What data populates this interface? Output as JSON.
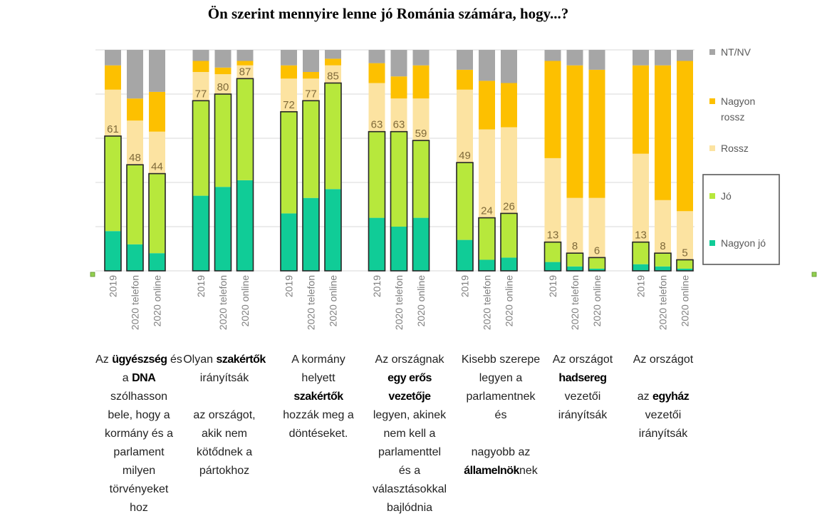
{
  "chart_data": {
    "type": "bar",
    "stacked": true,
    "title": "Ön szerint mennyire lenne jó Románia számára, hogy...?",
    "ylim": [
      0,
      100
    ],
    "grid": true,
    "legend_position": "right",
    "series": [
      {
        "name": "Nagyon jó",
        "color": "#10cc97"
      },
      {
        "name": "Jó",
        "color": "#b7e83c"
      },
      {
        "name": "Rossz",
        "color": "#fce3a1"
      },
      {
        "name": "Nagyon rossz",
        "color": "#fdc000"
      },
      {
        "name": "NT/NV",
        "color": "#a6a6a6"
      }
    ],
    "groups": [
      {
        "caption": [
          [
            {
              "t": "Az "
            },
            {
              "t": "ügyészség",
              "b": true
            },
            {
              "t": " és"
            }
          ],
          [
            {
              "t": "a "
            },
            {
              "t": "DNA",
              "b": true
            }
          ],
          [
            {
              "t": "szólhasson"
            }
          ],
          [
            {
              "t": "bele, hogy a"
            }
          ],
          [
            {
              "t": "kormány és a"
            }
          ],
          [
            {
              "t": "parlament"
            }
          ],
          [
            {
              "t": "milyen"
            }
          ],
          [
            {
              "t": "törvényeket"
            }
          ],
          [
            {
              "t": "hoz"
            }
          ]
        ],
        "bars": [
          {
            "category": "2019",
            "label": "61",
            "values": [
              18,
              43,
              21,
              11,
              7
            ]
          },
          {
            "category": "2020 telefon",
            "label": "48",
            "values": [
              12,
              36,
              20,
              10,
              22
            ]
          },
          {
            "category": "2020 online",
            "label": "44",
            "values": [
              8,
              36,
              19,
              18,
              19
            ]
          }
        ]
      },
      {
        "caption": [
          [
            {
              "t": "Olyan "
            },
            {
              "t": "szakértők",
              "b": true
            }
          ],
          [
            {
              "t": "irányítsák"
            }
          ],
          [
            {
              "t": ""
            }
          ],
          [
            {
              "t": "az országot,"
            }
          ],
          [
            {
              "t": "akik nem"
            }
          ],
          [
            {
              "t": "kötődnek a"
            }
          ],
          [
            {
              "t": "pártokhoz"
            }
          ]
        ],
        "bars": [
          {
            "category": "2019",
            "label": "77",
            "values": [
              34,
              43,
              13,
              5,
              5
            ]
          },
          {
            "category": "2020 telefon",
            "label": "80",
            "values": [
              38,
              42,
              9,
              3,
              8
            ]
          },
          {
            "category": "2020 online",
            "label": "87",
            "values": [
              41,
              46,
              6,
              2,
              5
            ]
          }
        ]
      },
      {
        "caption": [
          [
            {
              "t": "A kormány"
            }
          ],
          [
            {
              "t": "helyett"
            }
          ],
          [
            {
              "t": "szakértők",
              "b": true
            }
          ],
          [
            {
              "t": "hozzák meg a"
            }
          ],
          [
            {
              "t": "döntéseket."
            }
          ]
        ],
        "bars": [
          {
            "category": "2019",
            "label": "72",
            "values": [
              26,
              46,
              15,
              6,
              7
            ]
          },
          {
            "category": "2020 telefon",
            "label": "77",
            "values": [
              33,
              44,
              10,
              3,
              10
            ]
          },
          {
            "category": "2020 online",
            "label": "85",
            "values": [
              37,
              48,
              8,
              3,
              4
            ]
          }
        ]
      },
      {
        "caption": [
          [
            {
              "t": "Az országnak"
            }
          ],
          [
            {
              "t": "egy erős",
              "b": true
            }
          ],
          [
            {
              "t": "vezetője",
              "b": true
            }
          ],
          [
            {
              "t": "legyen, akinek"
            }
          ],
          [
            {
              "t": "nem kell a"
            }
          ],
          [
            {
              "t": "parlamenttel"
            }
          ],
          [
            {
              "t": "és a"
            }
          ],
          [
            {
              "t": "választásokkal"
            }
          ],
          [
            {
              "t": "bajlódnia"
            }
          ]
        ],
        "bars": [
          {
            "category": "2019",
            "label": "63",
            "values": [
              24,
              39,
              22,
              9,
              6
            ]
          },
          {
            "category": "2020 telefon",
            "label": "63",
            "values": [
              20,
              43,
              15,
              10,
              12
            ]
          },
          {
            "category": "2020 online",
            "label": "59",
            "values": [
              24,
              35,
              19,
              15,
              7
            ]
          }
        ]
      },
      {
        "caption": [
          [
            {
              "t": "Kisebb szerepe"
            }
          ],
          [
            {
              "t": "legyen a"
            }
          ],
          [
            {
              "t": "parlamentnek"
            }
          ],
          [
            {
              "t": "és"
            }
          ],
          [
            {
              "t": ""
            }
          ],
          [
            {
              "t": "nagyobb az"
            }
          ],
          [
            {
              "t": "államelnök",
              "b": true
            },
            {
              "t": "nek"
            }
          ]
        ],
        "bars": [
          {
            "category": "2019",
            "label": "49",
            "values": [
              14,
              35,
              33,
              9,
              9
            ]
          },
          {
            "category": "2020 telefon",
            "label": "24",
            "values": [
              5,
              19,
              40,
              22,
              14
            ]
          },
          {
            "category": "2020 online",
            "label": "26",
            "values": [
              6,
              20,
              39,
              20,
              15
            ]
          }
        ]
      },
      {
        "caption": [
          [
            {
              "t": "Az országot"
            }
          ],
          [
            {
              "t": "hadsereg",
              "b": true
            }
          ],
          [
            {
              "t": "vezetői"
            }
          ],
          [
            {
              "t": "irányítsák"
            }
          ]
        ],
        "bars": [
          {
            "category": "2019",
            "label": "13",
            "values": [
              4,
              9,
              38,
              44,
              5
            ]
          },
          {
            "category": "2020 telefon",
            "label": "8",
            "values": [
              2,
              6,
              25,
              60,
              7
            ]
          },
          {
            "category": "2020 online",
            "label": "6",
            "values": [
              1,
              5,
              27,
              58,
              9
            ]
          }
        ]
      },
      {
        "caption": [
          [
            {
              "t": "Az országot"
            }
          ],
          [
            {
              "t": ""
            }
          ],
          [
            {
              "t": "az "
            },
            {
              "t": "egyház",
              "b": true
            }
          ],
          [
            {
              "t": "vezetői"
            }
          ],
          [
            {
              "t": "irányítsák"
            }
          ]
        ],
        "bars": [
          {
            "category": "2019",
            "label": "13",
            "values": [
              3,
              10,
              40,
              40,
              7
            ]
          },
          {
            "category": "2020 telefon",
            "label": "8",
            "values": [
              2,
              6,
              24,
              61,
              7
            ]
          },
          {
            "category": "2020 online",
            "label": "5",
            "values": [
              1,
              4,
              22,
              68,
              5
            ]
          }
        ]
      }
    ]
  }
}
